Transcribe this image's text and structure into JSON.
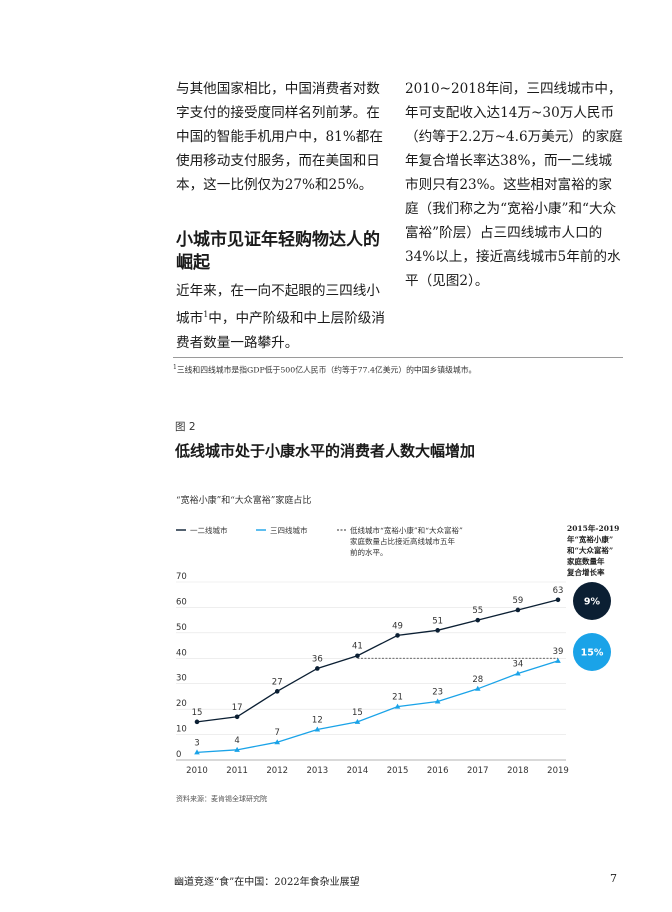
{
  "body": {
    "left_paragraph_1": "与其他国家相比，中国消费者对数字支付的接受度同样名列前茅。在中国的智能手机用户中，81%都在使用移动支付服务，而在美国和日本，这一比例仅为27%和25%。",
    "section_heading": "小城市见证年轻购物达人的崛起",
    "left_paragraph_2_before": "近年来，在一向不起眼的三四线小城市",
    "left_paragraph_2_sup": "1",
    "left_paragraph_2_after": "中，中产阶级和中上层阶级消费者数量一路攀升。",
    "right_paragraph": "2010~2018年间，三四线城市中，年可支配收入达14万~30万人民币（约等于2.2万~4.6万美元）的家庭年复合增长率达38%，而一二线城市则只有23%。这些相对富裕的家庭（我们称之为“宽裕小康”和“大众富裕”阶层）占三四线城市人口的34%以上，接近高线城市5年前的水平（见图2）。"
  },
  "footnote": {
    "marker": "1",
    "text": "三线和四线城市是指GDP低于500亿人民币（约等于77.4亿美元）的中国乡镇级城市。"
  },
  "figure": {
    "label": "图 2",
    "title": "低线城市处于小康水平的消费者人数大幅增加",
    "source": "资料来源：麦肯锡全球研究院"
  },
  "chart_data": {
    "type": "line",
    "subtitle": "“宽裕小康”和“大众富裕”家庭占比",
    "x": [
      "2010",
      "2011",
      "2012",
      "2013",
      "2014",
      "2015",
      "2016",
      "2017",
      "2018",
      "2019"
    ],
    "ylim": [
      0,
      70
    ],
    "yticks": [
      0,
      10,
      20,
      30,
      40,
      50,
      60,
      70
    ],
    "series": [
      {
        "name": "一二线城市",
        "color": "#0b1f33",
        "marker": "circle",
        "values": [
          15,
          17,
          27,
          36,
          41,
          49,
          51,
          55,
          59,
          63
        ]
      },
      {
        "name": "三四线城市",
        "color": "#1aa3e8",
        "marker": "triangle",
        "values": [
          3,
          4,
          7,
          12,
          15,
          21,
          23,
          28,
          34,
          39
        ]
      }
    ],
    "reference_line": {
      "legend_lines": [
        "低线城市“宽裕小康”和“大众富裕”",
        "家庭数量占比接近高线城市五年",
        "前的水平。"
      ],
      "from_x": "2014",
      "to_x": "2019",
      "value": 40
    },
    "cagr": {
      "header_lines": [
        "2015年-2019",
        "年“宽裕小康”",
        "和“大众富裕”",
        "家庭数量年",
        "复合增长率"
      ],
      "values": [
        {
          "label": "9%",
          "color": "#0b1f33"
        },
        {
          "label": "15%",
          "color": "#1aa3e8"
        }
      ]
    },
    "grid": true
  },
  "footer": {
    "title": "幽道竞逐“食”在中国：2022年食杂业展望",
    "page": "7"
  }
}
